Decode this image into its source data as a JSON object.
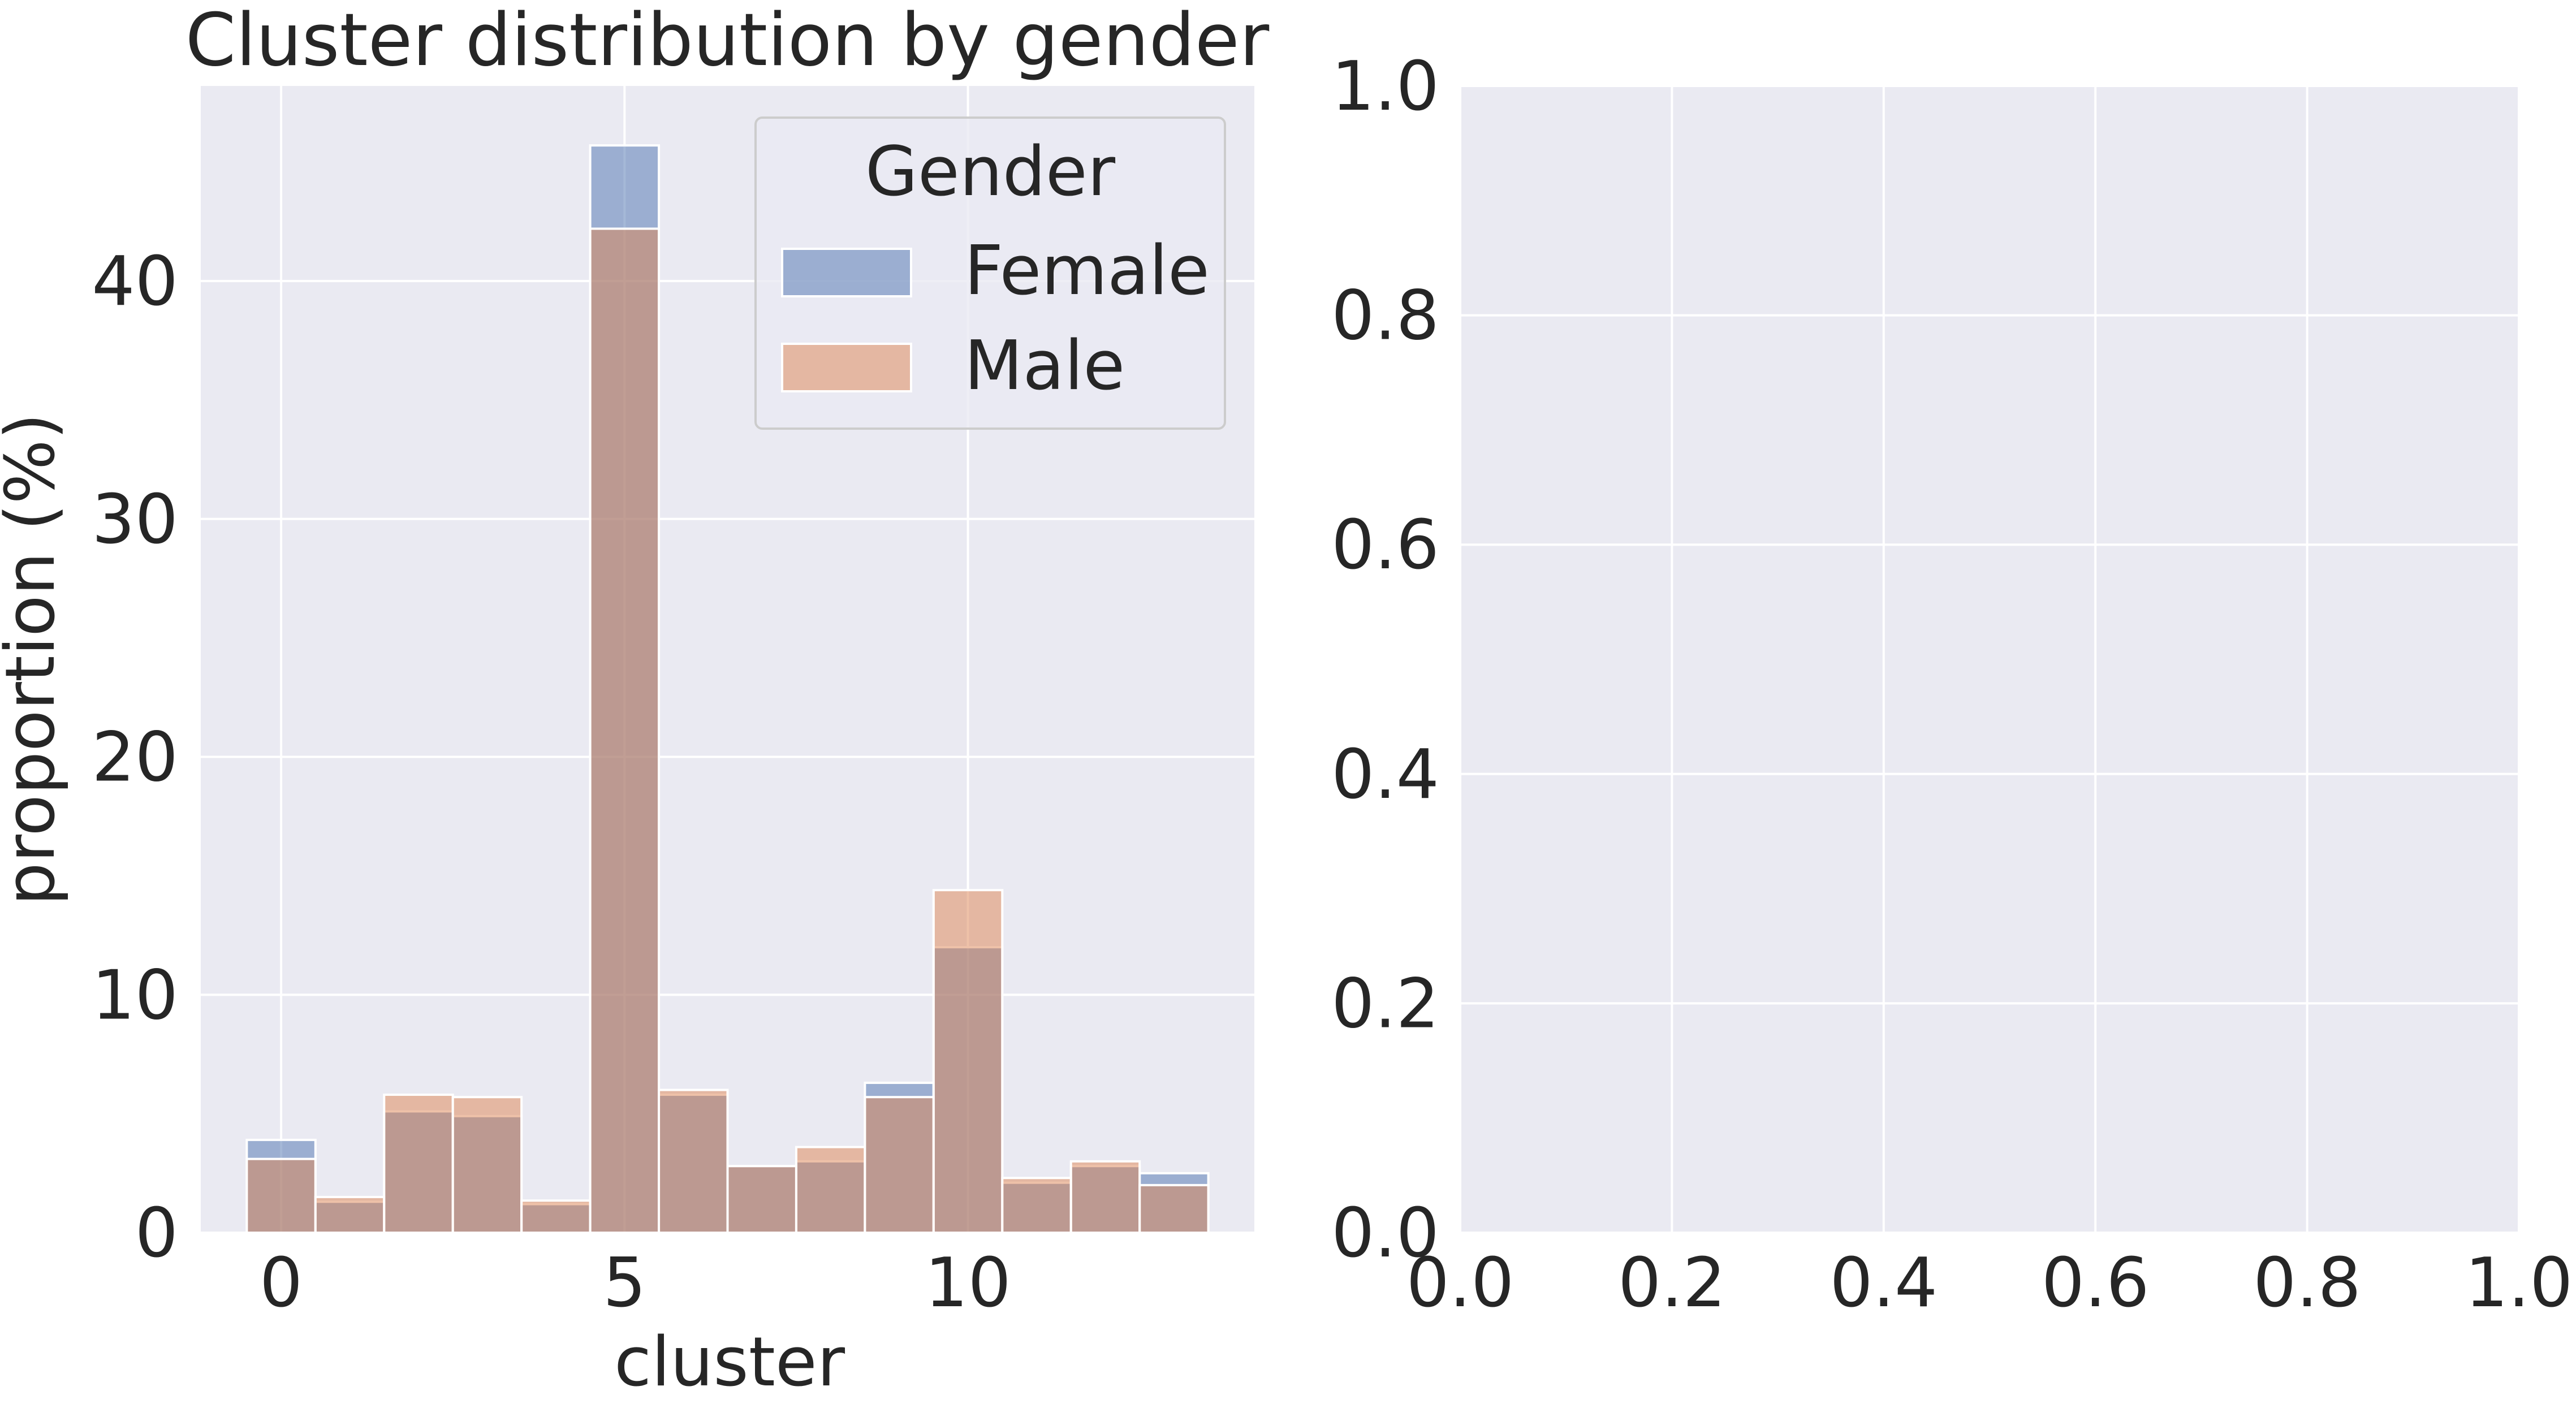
{
  "chart_data": [
    {
      "type": "bar",
      "title": "Cluster distribution by gender",
      "xlabel": "cluster",
      "ylabel": "proportion (%)",
      "xlim": [
        -1.17,
        14.17
      ],
      "ylim": [
        0,
        48.2
      ],
      "xticks": [
        0,
        5,
        10
      ],
      "yticks": [
        0,
        10,
        20,
        30,
        40
      ],
      "grid": true,
      "categories": [
        0,
        1,
        2,
        3,
        4,
        5,
        6,
        7,
        8,
        9,
        10,
        11,
        12,
        13
      ],
      "series": [
        {
          "name": "Female",
          "color": "#4c72b0",
          "values": [
            3.9,
            1.3,
            5.1,
            4.9,
            1.2,
            45.7,
            5.8,
            2.8,
            3.0,
            6.3,
            12.0,
            2.1,
            2.8,
            2.5
          ]
        },
        {
          "name": "Male",
          "color": "#dd8452",
          "values": [
            3.1,
            1.5,
            5.8,
            5.7,
            1.35,
            42.2,
            6.0,
            2.8,
            3.6,
            5.7,
            14.4,
            2.3,
            3.0,
            2.0
          ]
        }
      ],
      "legend": {
        "title": "Gender",
        "position": "top-right"
      }
    },
    {
      "type": "empty",
      "title": "",
      "xlabel": "",
      "ylabel": "",
      "xlim": [
        0,
        1
      ],
      "ylim": [
        0,
        1
      ],
      "xticks": [
        "0.0",
        "0.2",
        "0.4",
        "0.6",
        "0.8",
        "1.0"
      ],
      "yticks": [
        "0.0",
        "0.2",
        "0.4",
        "0.6",
        "0.8",
        "1.0"
      ],
      "grid": true
    }
  ]
}
